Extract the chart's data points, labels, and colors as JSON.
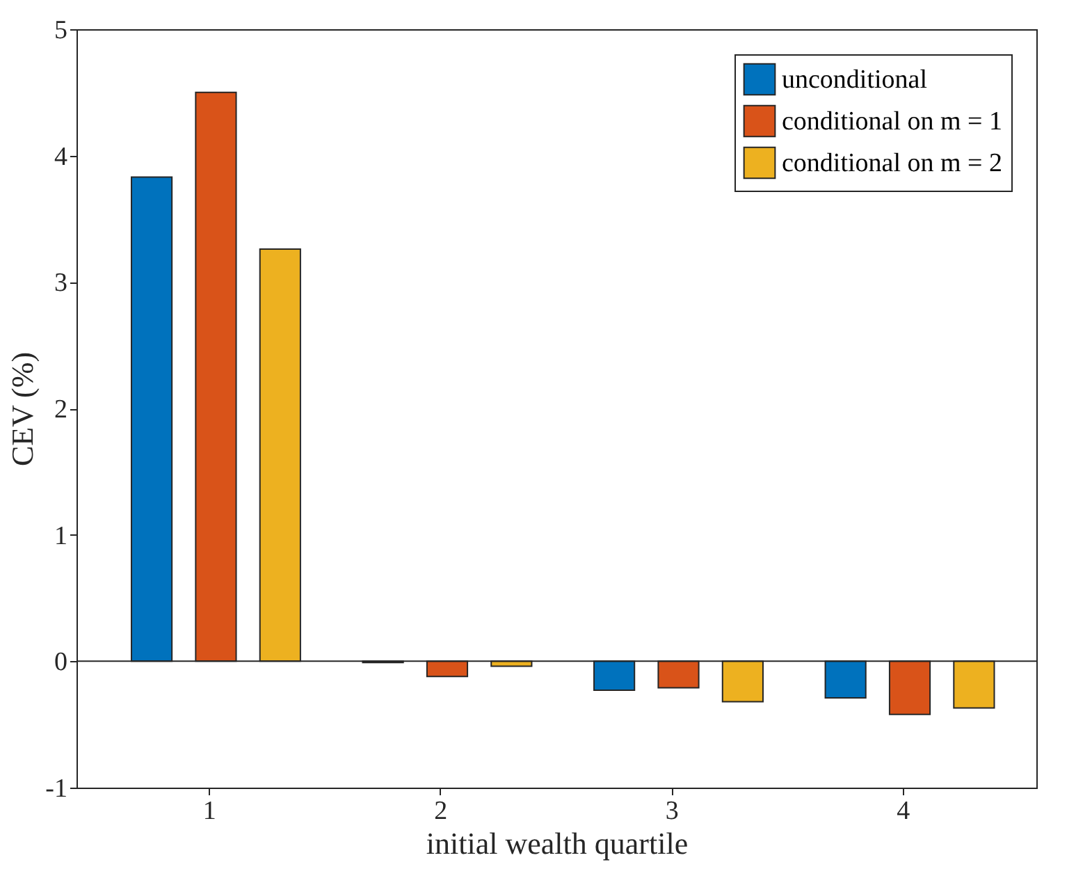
{
  "chart_data": {
    "type": "bar",
    "xlabel": "initial wealth quartile",
    "ylabel": "CEV (%)",
    "categories": [
      "1",
      "2",
      "3",
      "4"
    ],
    "series": [
      {
        "name": "unconditional",
        "color": "#0072bd",
        "values": [
          3.83,
          -0.01,
          -0.23,
          -0.29
        ]
      },
      {
        "name": "conditional on m = 1",
        "color": "#d95319",
        "values": [
          4.5,
          -0.12,
          -0.21,
          -0.42
        ]
      },
      {
        "name": "conditional on m = 2",
        "color": "#edb120",
        "values": [
          3.26,
          -0.04,
          -0.32,
          -0.37
        ]
      }
    ],
    "ylim": [
      -1,
      5
    ],
    "yticks": [
      -1,
      0,
      1,
      2,
      3,
      4,
      5
    ],
    "grid": false,
    "legend": "top right",
    "ref_lines": [
      {
        "axis": "y",
        "value": 0,
        "color": "#262626"
      }
    ]
  }
}
